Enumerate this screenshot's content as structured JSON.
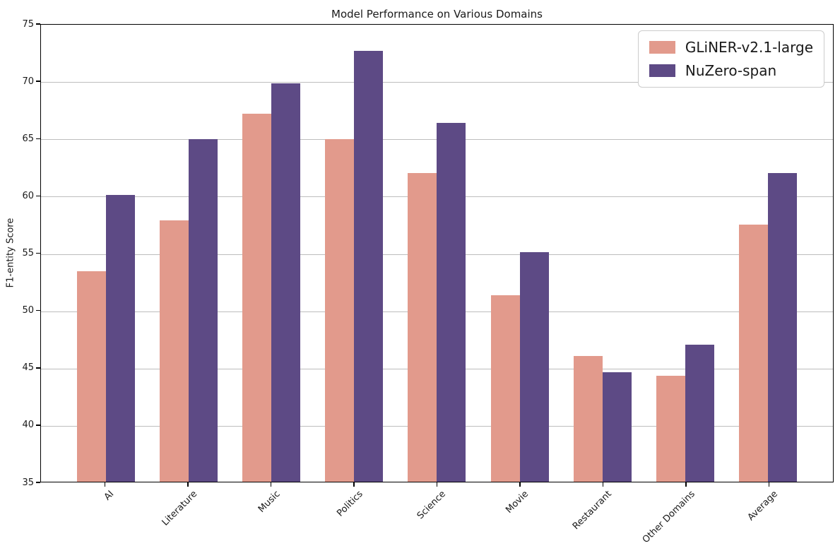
{
  "chart_data": {
    "type": "bar",
    "title": "Model Performance on Various Domains",
    "xlabel": "",
    "ylabel": "F1-entity Score",
    "categories": [
      "AI",
      "Literature",
      "Music",
      "Politics",
      "Science",
      "Movie",
      "Restaurant",
      "Other Domains",
      "Average"
    ],
    "series": [
      {
        "name": "GLiNER-v2.1-large",
        "color": "#E29A8C",
        "values": [
          53.4,
          57.9,
          67.2,
          65.0,
          62.0,
          51.3,
          46.0,
          44.3,
          57.5
        ]
      },
      {
        "name": "NuZero-span",
        "color": "#5D4A85",
        "values": [
          60.1,
          65.0,
          69.9,
          72.7,
          66.4,
          55.1,
          44.6,
          47.0,
          62.0
        ]
      }
    ],
    "ylim": [
      35,
      75
    ],
    "yticks": [
      35,
      40,
      45,
      50,
      55,
      60,
      65,
      70,
      75
    ],
    "grid": true,
    "grid_color": "#BDBDBD",
    "legend_position": "upper right",
    "background_color": "#FFFFFF",
    "axis_color": "#000000"
  }
}
